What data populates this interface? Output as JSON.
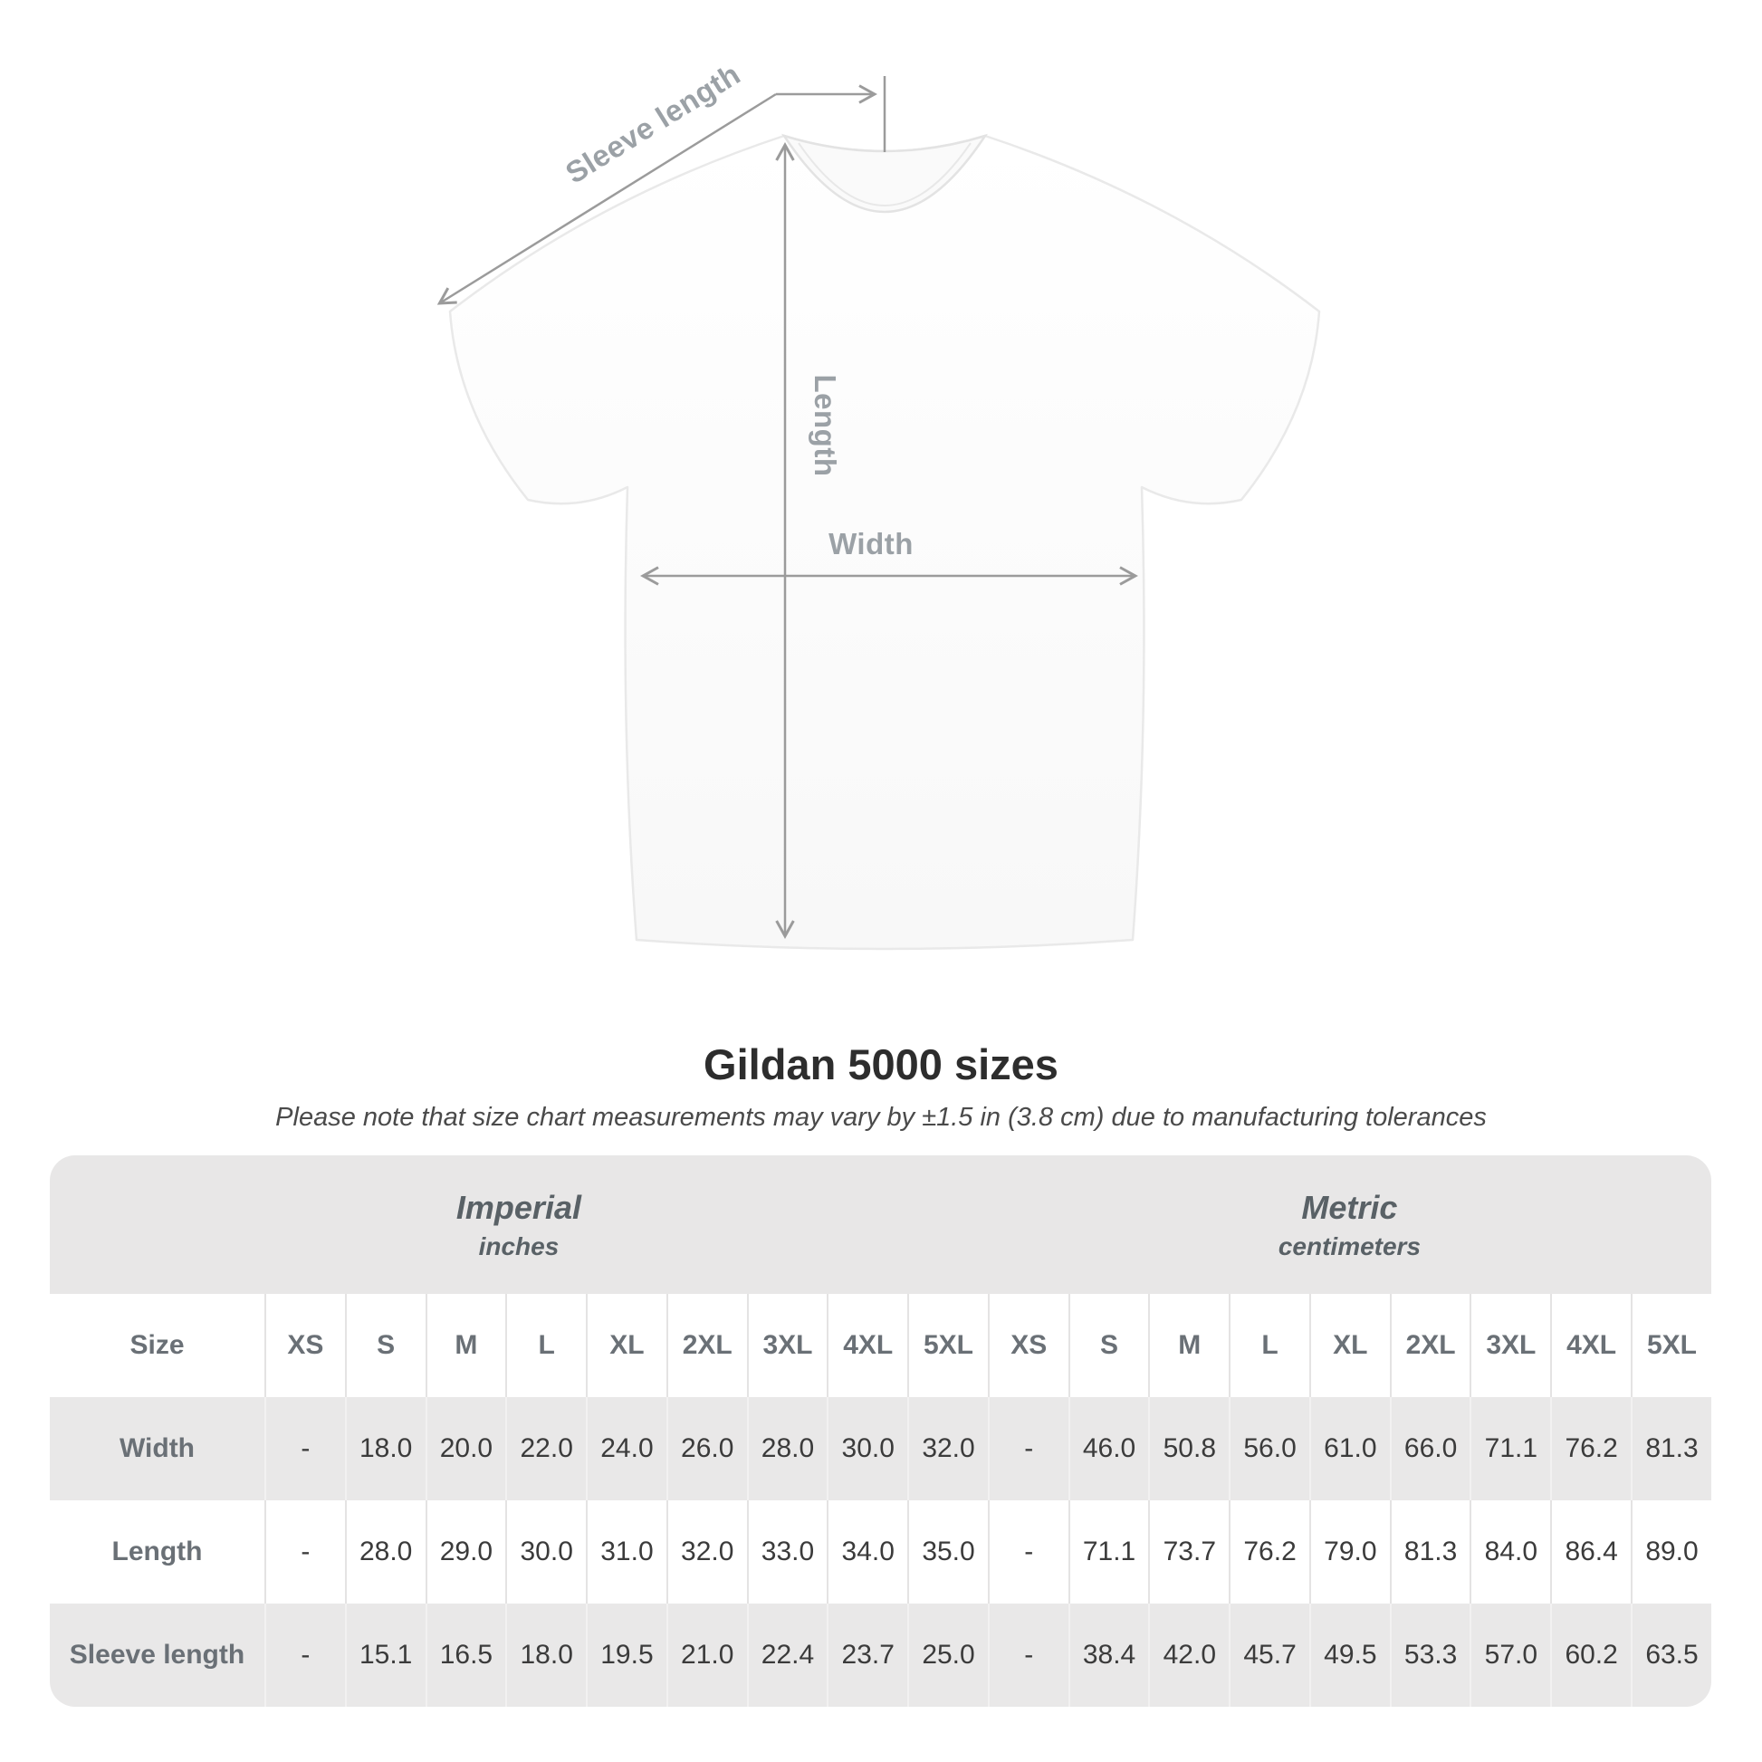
{
  "diagram": {
    "sleeve_length_label": "Sleeve length",
    "length_label": "Length",
    "width_label": "Width",
    "line_color": "#9b9b9b",
    "label_color": "#9ba1a6"
  },
  "title": "Gildan 5000 sizes",
  "subtitle": "Please note that size chart measurements may vary by ±1.5 in (3.8 cm) due to manufacturing tolerances",
  "table": {
    "group_headers": [
      {
        "label": "Imperial",
        "sublabel": "inches",
        "span": "10"
      },
      {
        "label": "Metric",
        "sublabel": "centimeters",
        "span": "9"
      }
    ],
    "size_column_header": "Size",
    "column_headers": [
      "XS",
      "S",
      "M",
      "L",
      "XL",
      "2XL",
      "3XL",
      "4XL",
      "5XL",
      "XS",
      "S",
      "M",
      "L",
      "XL",
      "2XL",
      "3XL",
      "4XL",
      "5XL"
    ],
    "rows": [
      {
        "label": "Width",
        "values": [
          "-",
          "18.0",
          "20.0",
          "22.0",
          "24.0",
          "26.0",
          "28.0",
          "30.0",
          "32.0",
          "-",
          "46.0",
          "50.8",
          "56.0",
          "61.0",
          "66.0",
          "71.1",
          "76.2",
          "81.3"
        ]
      },
      {
        "label": "Length",
        "values": [
          "-",
          "28.0",
          "29.0",
          "30.0",
          "31.0",
          "32.0",
          "33.0",
          "34.0",
          "35.0",
          "-",
          "71.1",
          "73.7",
          "76.2",
          "79.0",
          "81.3",
          "84.0",
          "86.4",
          "89.0"
        ]
      },
      {
        "label": "Sleeve length",
        "values": [
          "-",
          "15.1",
          "16.5",
          "18.0",
          "19.5",
          "21.0",
          "22.4",
          "23.7",
          "25.0",
          "-",
          "38.4",
          "42.0",
          "45.7",
          "49.5",
          "53.3",
          "57.0",
          "60.2",
          "63.5"
        ]
      }
    ]
  },
  "chart_data": {
    "type": "table",
    "title": "Gildan 5000 sizes",
    "note": "Please note that size chart measurements may vary by ±1.5 in (3.8 cm) due to manufacturing tolerances",
    "sizes": [
      "XS",
      "S",
      "M",
      "L",
      "XL",
      "2XL",
      "3XL",
      "4XL",
      "5XL"
    ],
    "imperial_inches": {
      "Width": [
        "-",
        18.0,
        20.0,
        22.0,
        24.0,
        26.0,
        28.0,
        30.0,
        32.0
      ],
      "Length": [
        "-",
        28.0,
        29.0,
        30.0,
        31.0,
        32.0,
        33.0,
        34.0,
        35.0
      ],
      "Sleeve length": [
        "-",
        15.1,
        16.5,
        18.0,
        19.5,
        21.0,
        22.4,
        23.7,
        25.0
      ]
    },
    "metric_centimeters": {
      "Width": [
        "-",
        46.0,
        50.8,
        56.0,
        61.0,
        66.0,
        71.1,
        76.2,
        81.3
      ],
      "Length": [
        "-",
        71.1,
        73.7,
        76.2,
        79.0,
        81.3,
        84.0,
        86.4,
        89.0
      ],
      "Sleeve length": [
        "-",
        38.4,
        42.0,
        45.7,
        49.5,
        53.3,
        57.0,
        60.2,
        63.5
      ]
    }
  }
}
